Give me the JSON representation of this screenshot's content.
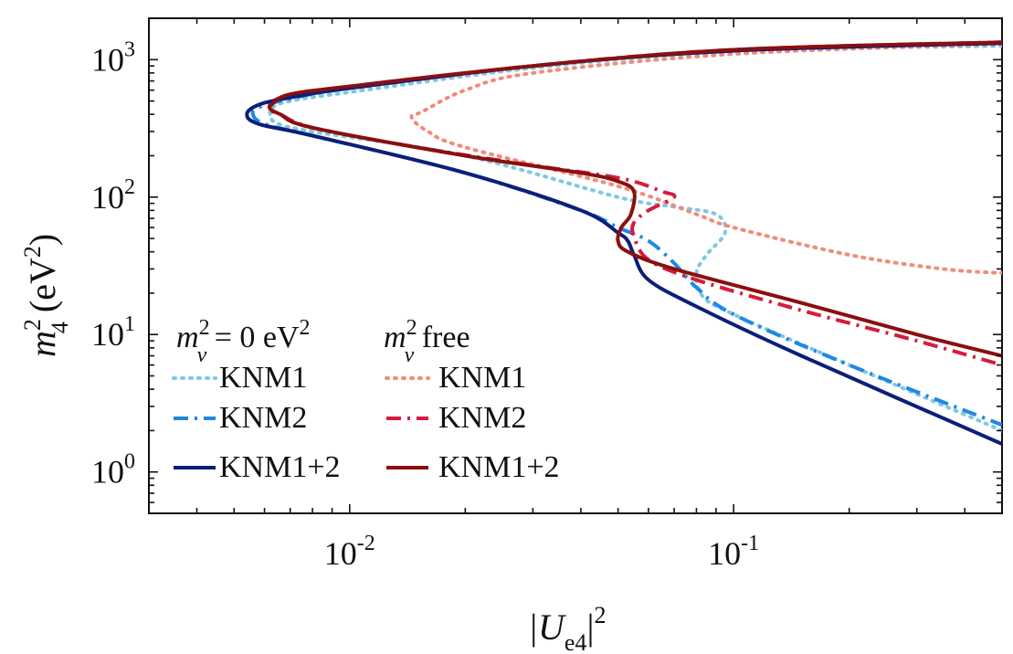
{
  "chart_data": {
    "type": "line",
    "xlabel": {
      "base": "|U",
      "sub": "e4",
      "close": "|",
      "sup": "2"
    },
    "ylabel": {
      "m": "m",
      "sub": "4",
      "sup": "2",
      "unit_open": " (eV",
      "unit_sup": "2",
      "unit_close": ")"
    },
    "xscale": "log",
    "yscale": "log",
    "xlim": [
      0.003,
      0.5
    ],
    "ylim": [
      0.5,
      2000
    ],
    "x_ticks": [
      {
        "value": 0.01,
        "base": "10",
        "exp": "-2"
      },
      {
        "value": 0.1,
        "base": "10",
        "exp": "-1"
      }
    ],
    "y_ticks": [
      {
        "value": 1,
        "base": "10",
        "exp": "0"
      },
      {
        "value": 10,
        "base": "10",
        "exp": "1"
      },
      {
        "value": 100,
        "base": "10",
        "exp": "2"
      },
      {
        "value": 1000,
        "base": "10",
        "exp": "3"
      }
    ],
    "grid": false,
    "legend": {
      "placement": "bottom-left",
      "columns": [
        {
          "heading": {
            "m": "m",
            "sup": "2",
            "sub": "ν",
            "rest": " = 0 eV",
            "rest_sup": "2"
          }
        },
        {
          "heading": {
            "m": "m",
            "sup": "2",
            "sub": "ν",
            "rest": " free",
            "rest_sup": ""
          }
        }
      ]
    },
    "series": [
      {
        "name": "KNM1",
        "group": "m_nu^2 = 0",
        "color": "#7ec8e3",
        "dash": "dotted",
        "points": [
          [
            0.5,
            1260
          ],
          [
            0.1,
            1150
          ],
          [
            0.03,
            870
          ],
          [
            0.01,
            580
          ],
          [
            0.007,
            500
          ],
          [
            0.0063,
            450
          ],
          [
            0.0062,
            420
          ],
          [
            0.0064,
            350
          ],
          [
            0.008,
            300
          ],
          [
            0.02,
            200
          ],
          [
            0.05,
            100
          ],
          [
            0.07,
            85
          ],
          [
            0.09,
            75
          ],
          [
            0.095,
            55
          ],
          [
            0.085,
            38
          ],
          [
            0.08,
            28
          ],
          [
            0.083,
            19
          ],
          [
            0.1,
            14
          ],
          [
            0.2,
            6
          ],
          [
            0.5,
            2
          ]
        ]
      },
      {
        "name": "KNM2",
        "group": "m_nu^2 = 0",
        "color": "#1e88e5",
        "dash": "dashdot",
        "points": [
          [
            0.5,
            1330
          ],
          [
            0.1,
            1170
          ],
          [
            0.03,
            900
          ],
          [
            0.01,
            620
          ],
          [
            0.007,
            520
          ],
          [
            0.0058,
            450
          ],
          [
            0.0056,
            400
          ],
          [
            0.006,
            340
          ],
          [
            0.008,
            280
          ],
          [
            0.02,
            150
          ],
          [
            0.04,
            80
          ],
          [
            0.05,
            60
          ],
          [
            0.06,
            48
          ],
          [
            0.07,
            33
          ],
          [
            0.08,
            22
          ],
          [
            0.1,
            14
          ],
          [
            0.2,
            6
          ],
          [
            0.5,
            2.2
          ]
        ]
      },
      {
        "name": "KNM1+2",
        "group": "m_nu^2 = 0",
        "color": "#0b1f7a",
        "dash": "solid",
        "points": [
          [
            0.5,
            1320
          ],
          [
            0.1,
            1160
          ],
          [
            0.03,
            900
          ],
          [
            0.01,
            620
          ],
          [
            0.007,
            530
          ],
          [
            0.0058,
            470
          ],
          [
            0.0054,
            400
          ],
          [
            0.0058,
            340
          ],
          [
            0.008,
            280
          ],
          [
            0.02,
            150
          ],
          [
            0.04,
            80
          ],
          [
            0.05,
            55
          ],
          [
            0.053,
            48
          ],
          [
            0.055,
            38
          ],
          [
            0.06,
            25
          ],
          [
            0.08,
            16
          ],
          [
            0.15,
            7
          ],
          [
            0.5,
            1.6
          ]
        ]
      },
      {
        "name": "KNM1",
        "group": "m_nu^2 free",
        "color": "#f28b7a",
        "dash": "dotted",
        "points": [
          [
            0.5,
            1300
          ],
          [
            0.1,
            1100
          ],
          [
            0.03,
            800
          ],
          [
            0.02,
            600
          ],
          [
            0.0155,
            420
          ],
          [
            0.0145,
            380
          ],
          [
            0.016,
            300
          ],
          [
            0.02,
            230
          ],
          [
            0.05,
            120
          ],
          [
            0.08,
            75
          ],
          [
            0.1,
            60
          ],
          [
            0.2,
            38
          ],
          [
            0.35,
            30
          ],
          [
            0.5,
            28
          ]
        ]
      },
      {
        "name": "KNM2",
        "group": "m_nu^2 free",
        "color": "#d81b3c",
        "dash": "dashdot",
        "points": [
          [
            0.5,
            1340
          ],
          [
            0.1,
            1180
          ],
          [
            0.03,
            900
          ],
          [
            0.01,
            620
          ],
          [
            0.0075,
            560
          ],
          [
            0.0065,
            520
          ],
          [
            0.0063,
            480
          ],
          [
            0.0062,
            430
          ],
          [
            0.0066,
            400
          ],
          [
            0.008,
            320
          ],
          [
            0.015,
            230
          ],
          [
            0.03,
            170
          ],
          [
            0.045,
            145
          ],
          [
            0.055,
            130
          ],
          [
            0.065,
            110
          ],
          [
            0.07,
            100
          ],
          [
            0.06,
            80
          ],
          [
            0.055,
            65
          ],
          [
            0.055,
            52
          ],
          [
            0.06,
            35
          ],
          [
            0.08,
            25
          ],
          [
            0.15,
            15
          ],
          [
            0.3,
            9
          ],
          [
            0.5,
            6
          ]
        ]
      },
      {
        "name": "KNM1+2",
        "group": "m_nu^2 free",
        "color": "#8b0f0f",
        "dash": "solid",
        "points": [
          [
            0.5,
            1340
          ],
          [
            0.1,
            1180
          ],
          [
            0.03,
            900
          ],
          [
            0.01,
            640
          ],
          [
            0.007,
            560
          ],
          [
            0.0063,
            480
          ],
          [
            0.0062,
            440
          ],
          [
            0.0066,
            400
          ],
          [
            0.008,
            320
          ],
          [
            0.02,
            200
          ],
          [
            0.04,
            150
          ],
          [
            0.05,
            130
          ],
          [
            0.055,
            110
          ],
          [
            0.054,
            75
          ],
          [
            0.051,
            60
          ],
          [
            0.05,
            48
          ],
          [
            0.053,
            40
          ],
          [
            0.07,
            30
          ],
          [
            0.15,
            17
          ],
          [
            0.3,
            10
          ],
          [
            0.5,
            7
          ]
        ]
      }
    ]
  }
}
